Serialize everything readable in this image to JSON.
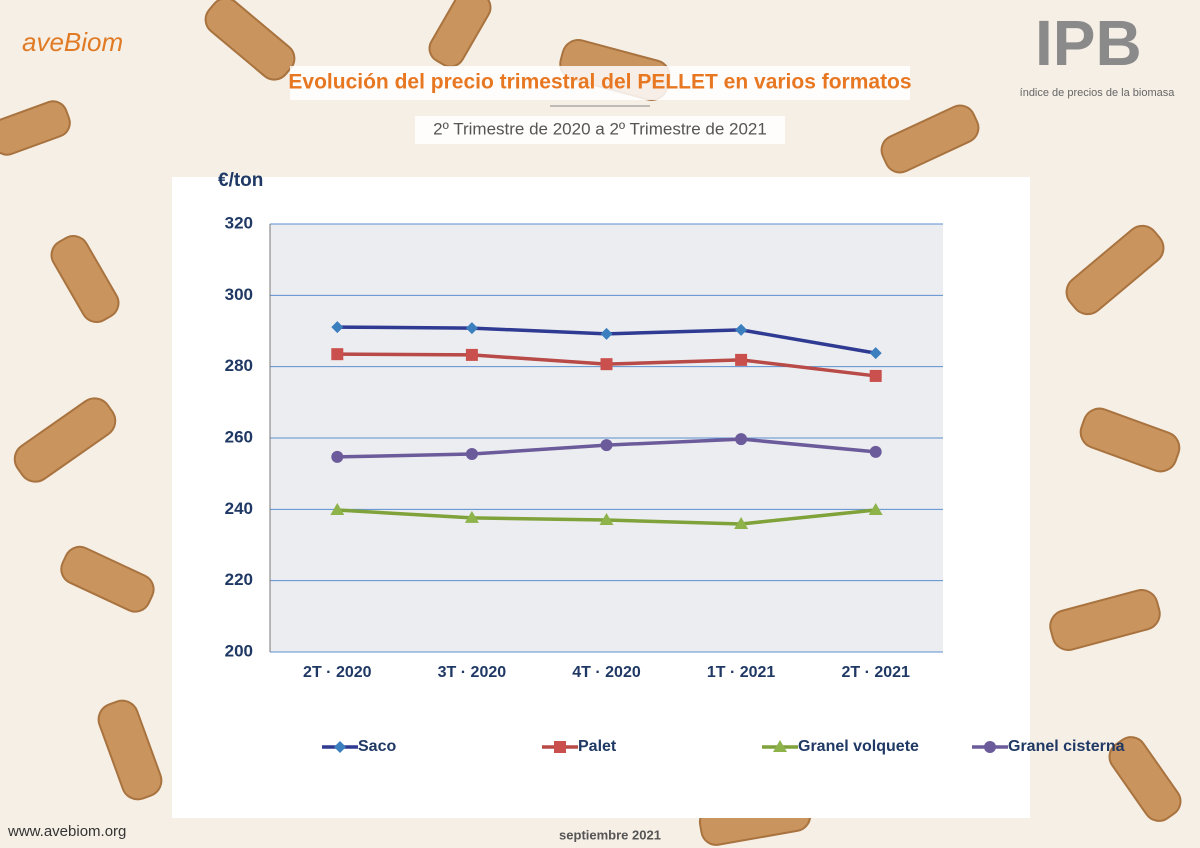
{
  "header": {
    "brand": "aveBiom",
    "index_logo": "IPB",
    "index_caption": "índice de precios de la biomasa"
  },
  "chart_data": {
    "type": "line",
    "title": "Evolución del precio trimestral del PELLET en varios formatos",
    "subtitle": "2º Trimestre de 2020 a 2º Trimestre de 2021",
    "y_label": "€/ton",
    "categories": [
      "2T · 2020",
      "3T · 2020",
      "4T · 2020",
      "1T · 2021",
      "2T · 2021"
    ],
    "series": [
      {
        "name": "Saco",
        "color": "#2f3a93",
        "marker": "diamond",
        "marker_color": "#3c7fbf",
        "values": [
          291.1,
          290.8,
          289.2,
          290.3,
          283.8
        ]
      },
      {
        "name": "Palet",
        "color": "#b84a47",
        "marker": "square",
        "marker_color": "#c9504c",
        "values": [
          283.5,
          283.3,
          280.7,
          281.9,
          277.4
        ]
      },
      {
        "name": "Granel volquete",
        "color": "#7fa23a",
        "marker": "triangle",
        "marker_color": "#8db34a",
        "values": [
          239.8,
          237.6,
          237.0,
          235.9,
          239.8
        ]
      },
      {
        "name": "Granel cisterna",
        "color": "#6c5b9b",
        "marker": "circle",
        "marker_color": "#6c5b9b",
        "values": [
          254.7,
          255.5,
          258.0,
          259.7,
          256.1
        ]
      }
    ],
    "ylim": [
      200,
      320
    ],
    "yticks": [
      200,
      220,
      240,
      260,
      280,
      300,
      320
    ],
    "grid": true,
    "legend": "bottom"
  },
  "footer": {
    "website": "www.avebiom.org",
    "date": "septiembre 2021"
  }
}
